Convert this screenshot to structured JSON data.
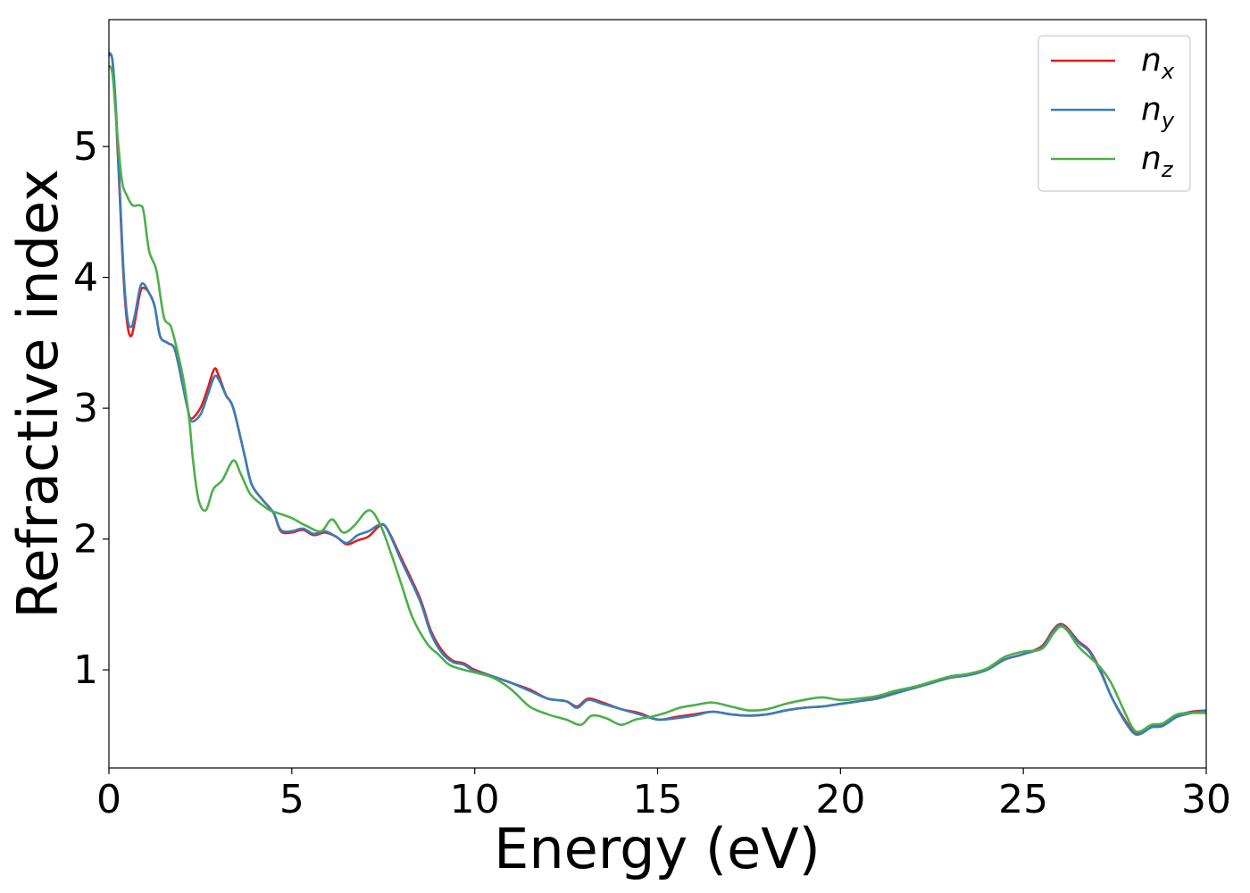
{
  "chart_data": {
    "type": "line",
    "xlabel": "Energy (eV)",
    "ylabel": "Refractive index",
    "xlim": [
      0,
      30
    ],
    "ylim": [
      0.25,
      5.97
    ],
    "xticks": [
      0,
      5,
      10,
      15,
      20,
      25,
      30
    ],
    "yticks": [
      1,
      2,
      3,
      4,
      5
    ],
    "xtick_labels": [
      "0",
      "5",
      "10",
      "15",
      "20",
      "25",
      "30"
    ],
    "ytick_labels": [
      "1",
      "2",
      "3",
      "4",
      "5"
    ],
    "grid": false,
    "legend_position": "top-right",
    "series": [
      {
        "name": "n_x",
        "legend_base": "n",
        "legend_sub": "x",
        "color": "#e41a1c",
        "points": [
          [
            0,
            5.7
          ],
          [
            0.1,
            5.65
          ],
          [
            0.2,
            5.2
          ],
          [
            0.3,
            4.6
          ],
          [
            0.4,
            4.0
          ],
          [
            0.5,
            3.65
          ],
          [
            0.6,
            3.55
          ],
          [
            0.7,
            3.65
          ],
          [
            0.85,
            3.88
          ],
          [
            0.95,
            3.92
          ],
          [
            1.1,
            3.88
          ],
          [
            1.25,
            3.78
          ],
          [
            1.4,
            3.55
          ],
          [
            1.6,
            3.5
          ],
          [
            1.8,
            3.45
          ],
          [
            2.0,
            3.2
          ],
          [
            2.15,
            3.0
          ],
          [
            2.25,
            2.92
          ],
          [
            2.5,
            3.0
          ],
          [
            2.7,
            3.15
          ],
          [
            2.88,
            3.3
          ],
          [
            3.0,
            3.25
          ],
          [
            3.2,
            3.1
          ],
          [
            3.4,
            3.0
          ],
          [
            3.7,
            2.65
          ],
          [
            3.9,
            2.42
          ],
          [
            4.2,
            2.3
          ],
          [
            4.5,
            2.2
          ],
          [
            4.7,
            2.06
          ],
          [
            5.0,
            2.05
          ],
          [
            5.3,
            2.07
          ],
          [
            5.6,
            2.03
          ],
          [
            5.9,
            2.05
          ],
          [
            6.2,
            2.02
          ],
          [
            6.5,
            1.96
          ],
          [
            6.8,
            1.99
          ],
          [
            7.1,
            2.02
          ],
          [
            7.4,
            2.1
          ],
          [
            7.6,
            2.08
          ],
          [
            8.0,
            1.85
          ],
          [
            8.5,
            1.55
          ],
          [
            8.8,
            1.3
          ],
          [
            9.1,
            1.15
          ],
          [
            9.4,
            1.07
          ],
          [
            9.7,
            1.05
          ],
          [
            10.0,
            1.0
          ],
          [
            10.5,
            0.95
          ],
          [
            11.0,
            0.9
          ],
          [
            11.5,
            0.85
          ],
          [
            12.0,
            0.78
          ],
          [
            12.5,
            0.76
          ],
          [
            12.8,
            0.72
          ],
          [
            13.1,
            0.78
          ],
          [
            13.5,
            0.75
          ],
          [
            14.0,
            0.7
          ],
          [
            14.5,
            0.67
          ],
          [
            15.0,
            0.62
          ],
          [
            15.5,
            0.64
          ],
          [
            16.0,
            0.66
          ],
          [
            16.5,
            0.68
          ],
          [
            17.0,
            0.66
          ],
          [
            17.5,
            0.65
          ],
          [
            18.0,
            0.66
          ],
          [
            18.5,
            0.69
          ],
          [
            19.0,
            0.71
          ],
          [
            19.5,
            0.72
          ],
          [
            20.0,
            0.74
          ],
          [
            20.5,
            0.76
          ],
          [
            21.0,
            0.79
          ],
          [
            21.5,
            0.83
          ],
          [
            22.0,
            0.86
          ],
          [
            22.5,
            0.9
          ],
          [
            23.0,
            0.94
          ],
          [
            23.5,
            0.96
          ],
          [
            24.0,
            1.0
          ],
          [
            24.5,
            1.08
          ],
          [
            25.0,
            1.12
          ],
          [
            25.5,
            1.18
          ],
          [
            25.8,
            1.3
          ],
          [
            26.0,
            1.35
          ],
          [
            26.2,
            1.32
          ],
          [
            26.5,
            1.22
          ],
          [
            26.8,
            1.15
          ],
          [
            27.1,
            1.0
          ],
          [
            27.4,
            0.8
          ],
          [
            27.7,
            0.65
          ],
          [
            28.0,
            0.53
          ],
          [
            28.2,
            0.52
          ],
          [
            28.5,
            0.57
          ],
          [
            28.8,
            0.58
          ],
          [
            29.2,
            0.65
          ],
          [
            29.6,
            0.68
          ],
          [
            30.0,
            0.69
          ]
        ]
      },
      {
        "name": "n_y",
        "legend_base": "n",
        "legend_sub": "y",
        "color": "#377eb8",
        "points": [
          [
            0,
            5.72
          ],
          [
            0.1,
            5.65
          ],
          [
            0.2,
            5.25
          ],
          [
            0.3,
            4.65
          ],
          [
            0.4,
            4.05
          ],
          [
            0.5,
            3.7
          ],
          [
            0.6,
            3.62
          ],
          [
            0.7,
            3.7
          ],
          [
            0.85,
            3.92
          ],
          [
            0.95,
            3.95
          ],
          [
            1.1,
            3.88
          ],
          [
            1.25,
            3.78
          ],
          [
            1.4,
            3.55
          ],
          [
            1.6,
            3.5
          ],
          [
            1.8,
            3.45
          ],
          [
            2.0,
            3.2
          ],
          [
            2.15,
            3.0
          ],
          [
            2.25,
            2.9
          ],
          [
            2.5,
            2.95
          ],
          [
            2.7,
            3.1
          ],
          [
            2.88,
            3.24
          ],
          [
            3.0,
            3.22
          ],
          [
            3.2,
            3.1
          ],
          [
            3.4,
            3.0
          ],
          [
            3.7,
            2.65
          ],
          [
            3.9,
            2.42
          ],
          [
            4.2,
            2.3
          ],
          [
            4.5,
            2.2
          ],
          [
            4.7,
            2.07
          ],
          [
            5.0,
            2.06
          ],
          [
            5.3,
            2.08
          ],
          [
            5.6,
            2.04
          ],
          [
            5.9,
            2.06
          ],
          [
            6.2,
            2.02
          ],
          [
            6.5,
            1.97
          ],
          [
            6.8,
            2.03
          ],
          [
            7.1,
            2.06
          ],
          [
            7.4,
            2.11
          ],
          [
            7.6,
            2.08
          ],
          [
            8.0,
            1.83
          ],
          [
            8.5,
            1.53
          ],
          [
            8.8,
            1.28
          ],
          [
            9.1,
            1.13
          ],
          [
            9.4,
            1.06
          ],
          [
            9.7,
            1.04
          ],
          [
            10.0,
            0.99
          ],
          [
            10.5,
            0.95
          ],
          [
            11.0,
            0.9
          ],
          [
            11.5,
            0.84
          ],
          [
            12.0,
            0.78
          ],
          [
            12.5,
            0.76
          ],
          [
            12.8,
            0.71
          ],
          [
            13.1,
            0.77
          ],
          [
            13.5,
            0.74
          ],
          [
            14.0,
            0.7
          ],
          [
            14.5,
            0.66
          ],
          [
            15.0,
            0.62
          ],
          [
            15.5,
            0.63
          ],
          [
            16.0,
            0.65
          ],
          [
            16.5,
            0.68
          ],
          [
            17.0,
            0.66
          ],
          [
            17.5,
            0.65
          ],
          [
            18.0,
            0.66
          ],
          [
            18.5,
            0.69
          ],
          [
            19.0,
            0.71
          ],
          [
            19.5,
            0.72
          ],
          [
            20.0,
            0.74
          ],
          [
            20.5,
            0.76
          ],
          [
            21.0,
            0.78
          ],
          [
            21.5,
            0.82
          ],
          [
            22.0,
            0.86
          ],
          [
            22.5,
            0.9
          ],
          [
            23.0,
            0.94
          ],
          [
            23.5,
            0.96
          ],
          [
            24.0,
            1.0
          ],
          [
            24.5,
            1.08
          ],
          [
            25.0,
            1.12
          ],
          [
            25.5,
            1.17
          ],
          [
            25.8,
            1.29
          ],
          [
            26.0,
            1.34
          ],
          [
            26.2,
            1.31
          ],
          [
            26.5,
            1.21
          ],
          [
            26.8,
            1.14
          ],
          [
            27.1,
            0.99
          ],
          [
            27.4,
            0.8
          ],
          [
            27.7,
            0.64
          ],
          [
            28.0,
            0.52
          ],
          [
            28.2,
            0.51
          ],
          [
            28.5,
            0.56
          ],
          [
            28.8,
            0.57
          ],
          [
            29.2,
            0.64
          ],
          [
            29.6,
            0.67
          ],
          [
            30.0,
            0.69
          ]
        ]
      },
      {
        "name": "n_z",
        "legend_base": "n",
        "legend_sub": "z",
        "color": "#4daf4a",
        "points": [
          [
            0,
            5.62
          ],
          [
            0.1,
            5.55
          ],
          [
            0.2,
            5.2
          ],
          [
            0.35,
            4.75
          ],
          [
            0.5,
            4.62
          ],
          [
            0.65,
            4.55
          ],
          [
            0.85,
            4.55
          ],
          [
            0.95,
            4.5
          ],
          [
            1.1,
            4.2
          ],
          [
            1.3,
            4.05
          ],
          [
            1.5,
            3.7
          ],
          [
            1.7,
            3.62
          ],
          [
            1.9,
            3.4
          ],
          [
            2.05,
            3.2
          ],
          [
            2.2,
            2.9
          ],
          [
            2.3,
            2.6
          ],
          [
            2.45,
            2.3
          ],
          [
            2.65,
            2.22
          ],
          [
            2.85,
            2.38
          ],
          [
            3.1,
            2.45
          ],
          [
            3.4,
            2.6
          ],
          [
            3.6,
            2.5
          ],
          [
            3.85,
            2.35
          ],
          [
            4.1,
            2.28
          ],
          [
            4.4,
            2.22
          ],
          [
            4.6,
            2.2
          ],
          [
            5.0,
            2.16
          ],
          [
            5.4,
            2.1
          ],
          [
            5.8,
            2.06
          ],
          [
            6.1,
            2.15
          ],
          [
            6.4,
            2.05
          ],
          [
            6.7,
            2.1
          ],
          [
            7.1,
            2.22
          ],
          [
            7.4,
            2.12
          ],
          [
            7.7,
            1.9
          ],
          [
            8.0,
            1.65
          ],
          [
            8.3,
            1.4
          ],
          [
            8.7,
            1.2
          ],
          [
            9.0,
            1.12
          ],
          [
            9.3,
            1.04
          ],
          [
            9.7,
            1.0
          ],
          [
            10.0,
            0.98
          ],
          [
            10.5,
            0.94
          ],
          [
            11.0,
            0.85
          ],
          [
            11.5,
            0.72
          ],
          [
            12.0,
            0.66
          ],
          [
            12.5,
            0.62
          ],
          [
            12.9,
            0.58
          ],
          [
            13.2,
            0.65
          ],
          [
            13.6,
            0.63
          ],
          [
            14.0,
            0.58
          ],
          [
            14.4,
            0.62
          ],
          [
            14.8,
            0.64
          ],
          [
            15.2,
            0.67
          ],
          [
            15.6,
            0.71
          ],
          [
            16.0,
            0.73
          ],
          [
            16.5,
            0.75
          ],
          [
            17.0,
            0.72
          ],
          [
            17.5,
            0.69
          ],
          [
            18.0,
            0.7
          ],
          [
            18.5,
            0.74
          ],
          [
            19.0,
            0.77
          ],
          [
            19.5,
            0.79
          ],
          [
            20.0,
            0.77
          ],
          [
            20.5,
            0.78
          ],
          [
            21.0,
            0.8
          ],
          [
            21.5,
            0.84
          ],
          [
            22.0,
            0.87
          ],
          [
            22.5,
            0.91
          ],
          [
            23.0,
            0.95
          ],
          [
            23.5,
            0.97
          ],
          [
            24.0,
            1.01
          ],
          [
            24.5,
            1.1
          ],
          [
            25.0,
            1.14
          ],
          [
            25.5,
            1.16
          ],
          [
            25.8,
            1.27
          ],
          [
            26.0,
            1.33
          ],
          [
            26.2,
            1.3
          ],
          [
            26.5,
            1.18
          ],
          [
            26.8,
            1.1
          ],
          [
            27.1,
            1.02
          ],
          [
            27.4,
            0.9
          ],
          [
            27.7,
            0.72
          ],
          [
            28.0,
            0.55
          ],
          [
            28.2,
            0.53
          ],
          [
            28.5,
            0.58
          ],
          [
            28.8,
            0.59
          ],
          [
            29.2,
            0.66
          ],
          [
            29.6,
            0.67
          ],
          [
            30.0,
            0.67
          ]
        ]
      }
    ]
  }
}
